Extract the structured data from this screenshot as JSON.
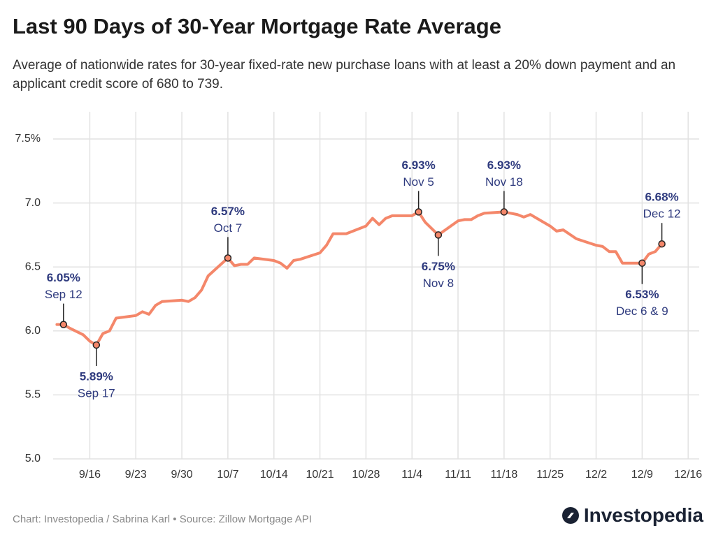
{
  "chart_data": {
    "type": "line",
    "title": "Last 90 Days of 30-Year Mortgage Rate Average",
    "subtitle": "Average of nationwide rates for 30-year fixed-rate new purchase loans with at least a 20% down payment and an applicant credit score of 680 to 739.",
    "color": "#f4876a",
    "x": [
      "9/11",
      "9/12",
      "9/13",
      "9/15",
      "9/16",
      "9/17",
      "9/18",
      "9/19",
      "9/20",
      "9/23",
      "9/24",
      "9/25",
      "9/26",
      "9/27",
      "9/30",
      "10/1",
      "10/2",
      "10/3",
      "10/4",
      "10/7",
      "10/8",
      "10/9",
      "10/10",
      "10/11",
      "10/14",
      "10/15",
      "10/16",
      "10/17",
      "10/18",
      "10/21",
      "10/22",
      "10/23",
      "10/24",
      "10/25",
      "10/28",
      "10/29",
      "10/30",
      "10/31",
      "11/1",
      "11/4",
      "11/5",
      "11/6",
      "11/8",
      "11/11",
      "11/12",
      "11/13",
      "11/14",
      "11/15",
      "11/18",
      "11/19",
      "11/20",
      "11/21",
      "11/22",
      "11/25",
      "11/26",
      "11/27",
      "11/29",
      "12/2",
      "12/3",
      "12/4",
      "12/5",
      "12/6",
      "12/9",
      "12/10",
      "12/11",
      "12/12"
    ],
    "values": [
      6.05,
      6.05,
      6.02,
      5.97,
      5.92,
      5.89,
      5.98,
      6.0,
      6.1,
      6.12,
      6.15,
      6.13,
      6.2,
      6.23,
      6.24,
      6.23,
      6.26,
      6.32,
      6.43,
      6.57,
      6.51,
      6.52,
      6.52,
      6.57,
      6.55,
      6.53,
      6.49,
      6.55,
      6.56,
      6.61,
      6.67,
      6.76,
      6.76,
      6.76,
      6.82,
      6.88,
      6.83,
      6.88,
      6.9,
      6.9,
      6.93,
      6.85,
      6.75,
      6.86,
      6.87,
      6.87,
      6.9,
      6.92,
      6.93,
      6.92,
      6.91,
      6.89,
      6.91,
      6.82,
      6.78,
      6.79,
      6.72,
      6.67,
      6.66,
      6.62,
      6.62,
      6.53,
      6.53,
      6.6,
      6.62,
      6.68
    ],
    "xlim": [
      "9/10",
      "12/18"
    ],
    "xticks": [
      "9/16",
      "9/23",
      "9/30",
      "10/7",
      "10/14",
      "10/21",
      "10/28",
      "11/4",
      "11/11",
      "11/18",
      "11/25",
      "12/2",
      "12/9",
      "12/16"
    ],
    "ylim": [
      5,
      7.5
    ],
    "yticks": [
      {
        "value": 5,
        "label": "5.0"
      },
      5.5,
      {
        "value": 6,
        "label": "6.0"
      },
      6.5,
      {
        "value": 7,
        "label": "7.0"
      },
      {
        "value": 7.5,
        "label": "7.5%"
      }
    ],
    "grid": true,
    "annotations": [
      {
        "x": "9/12",
        "value": 6.05,
        "value_label": "6.05%",
        "label": "Sep 12"
      },
      {
        "x": "9/17",
        "value": 5.89,
        "value_label": "5.89%",
        "label": "Sep 17"
      },
      {
        "x": "10/7",
        "value": 6.57,
        "value_label": "6.57%",
        "label": "Oct 7"
      },
      {
        "x": "11/5",
        "value": 6.93,
        "value_label": "6.93%",
        "label": "Nov 5"
      },
      {
        "x": "11/8",
        "value": 6.75,
        "value_label": "6.75%",
        "label": "Nov 8"
      },
      {
        "x": "11/18",
        "value": 6.93,
        "value_label": "6.93%",
        "label": "Nov 18"
      },
      {
        "x": "12/9",
        "value": 6.53,
        "value_label": "6.53%",
        "label": "Dec 6 & 9"
      },
      {
        "x": "12/12",
        "value": 6.68,
        "value_label": "6.68%",
        "label": "Dec 12"
      }
    ],
    "source": "Chart: Investopedia / Sabrina Karl • Source: Zillow Mortgage API",
    "logo": "Investopedia"
  }
}
